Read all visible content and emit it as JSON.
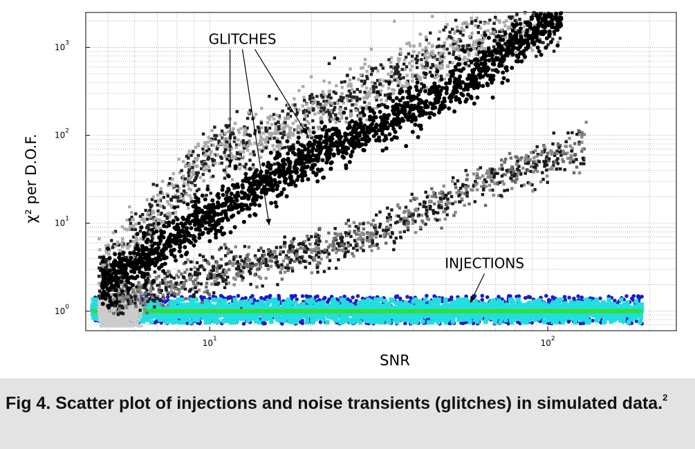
{
  "chart_data": {
    "type": "scatter",
    "title": "",
    "xlabel": "SNR",
    "ylabel": "χ² per D.O.F.",
    "x_scale": "log",
    "y_scale": "log",
    "xlim": [
      4.3,
      240
    ],
    "ylim": [
      0.6,
      2500
    ],
    "grid": true,
    "x_ticks": [
      {
        "value": 10,
        "base": "10",
        "exp": "1"
      },
      {
        "value": 100,
        "base": "10",
        "exp": "2"
      }
    ],
    "y_ticks": [
      {
        "value": 1,
        "base": "10",
        "exp": "0"
      },
      {
        "value": 10,
        "base": "10",
        "exp": "1"
      },
      {
        "value": 100,
        "base": "10",
        "exp": "2"
      },
      {
        "value": 1000,
        "base": "10",
        "exp": "3"
      }
    ],
    "annotations": [
      {
        "text": "GLITCHES",
        "x": 12.5,
        "y": 1100,
        "targets": [
          [
            11.5,
            45
          ],
          [
            15,
            9.5
          ],
          [
            19.5,
            100
          ]
        ]
      },
      {
        "text": "INJECTIONS",
        "x": 65,
        "y": 3.1,
        "targets": [
          [
            59,
            1.25
          ]
        ]
      }
    ],
    "series": [
      {
        "name": "",
        "color": "#1a1acc",
        "kind": "injections-outer",
        "x_range": [
          4.5,
          190
        ],
        "y_range": [
          0.72,
          1.5
        ],
        "count": 1100
      },
      {
        "name": "",
        "color": "#22dede",
        "kind": "injections-band",
        "x_range": [
          4.5,
          190
        ],
        "y_range": [
          0.75,
          1.35
        ],
        "count": 2600
      },
      {
        "name": "",
        "color": "#33dd33",
        "kind": "injections-line",
        "x_range": [
          4.5,
          190
        ],
        "y": 1.0
      },
      {
        "name": "",
        "color": "#cccccc",
        "kind": "low-snr-cluster",
        "x_range": [
          4.7,
          6.3
        ],
        "y_range": [
          0.68,
          1.55
        ],
        "count": 900
      },
      {
        "name": "",
        "color": "#555555",
        "kind": "glitch-branch-gray",
        "trend": [
          [
            5.2,
            1.4
          ],
          [
            10,
            2.6
          ],
          [
            30,
            7.5
          ],
          [
            60,
            25
          ],
          [
            130,
            80
          ]
        ],
        "count": 1300
      },
      {
        "name": "",
        "color": "#222222",
        "kind": "glitch-branch-upper",
        "trend": [
          [
            4.7,
            2.2
          ],
          [
            10,
            60
          ],
          [
            20,
            150
          ],
          [
            50,
            900
          ],
          [
            110,
            2500
          ]
        ],
        "count": 1700
      },
      {
        "name": "",
        "color": "#000000",
        "kind": "glitch-branch-dense",
        "trend": [
          [
            4.8,
            2.0
          ],
          [
            10,
            12
          ],
          [
            20,
            60
          ],
          [
            50,
            300
          ],
          [
            110,
            2300
          ]
        ],
        "count": 1800
      }
    ]
  },
  "caption": {
    "text": "Fig 4. Scatter plot of injections and noise transients (glitches) in simulated data.",
    "footnote": "2"
  }
}
